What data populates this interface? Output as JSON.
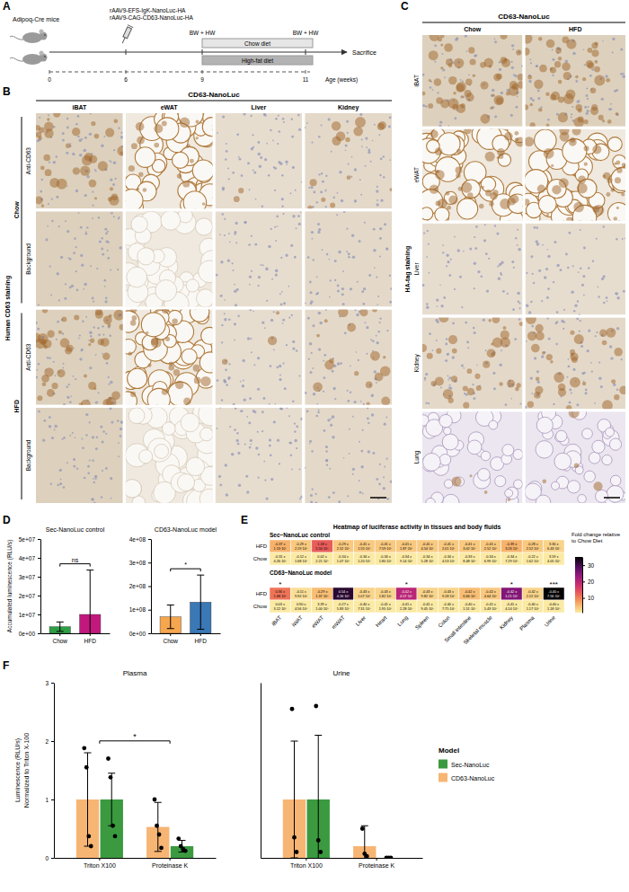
{
  "figure": {
    "panel_labels": [
      "A",
      "B",
      "C",
      "D",
      "E",
      "F"
    ],
    "schematic": {
      "mouse_label": "Adipoq-Cre mice",
      "vectors": [
        "rAAV9-EFS-IgK-NanoLuc-HA",
        "rAAV9-CAG-CD63-NanoLuc-HA"
      ],
      "measure_labels": [
        "BW + HW",
        "BW + HW"
      ],
      "diets": [
        "Chow diet",
        "High-fat diet"
      ],
      "end_label": "Sacrifice",
      "axis_label": "Age (weeks)",
      "ticks": [
        "0",
        "6",
        "9",
        "11"
      ]
    },
    "image_grid_B": {
      "title": "CD63-NanoLuc",
      "group_label": "Human CD63 staining",
      "columns": [
        "iBAT",
        "eWAT",
        "Liver",
        "Kidney"
      ],
      "row_groups": [
        {
          "name": "Chow",
          "rows": [
            "Anti-CD63",
            "Background"
          ]
        },
        {
          "name": "HFD",
          "rows": [
            "Anti-CD63",
            "Background"
          ]
        }
      ]
    },
    "image_grid_C": {
      "title": "CD63-NanoLuc",
      "group_label": "HA-tag staining",
      "columns": [
        "Chow",
        "HFD"
      ],
      "rows": [
        "iBAT",
        "eWAT",
        "Liver",
        "Kidney",
        "Lung"
      ]
    }
  },
  "chart_data": [
    {
      "type": "bar",
      "title": "Sec-NanoLuc control",
      "y_label": "Accumulated luminescence (RLU/s)",
      "categories": [
        "Chow",
        "HFD"
      ],
      "values": [
        3500000,
        10000000
      ],
      "errors": [
        2500000,
        23500000
      ],
      "colors": [
        "#2e9e46",
        "#c2187e"
      ],
      "ylim": [
        0,
        50000000
      ],
      "yticks": [
        {
          "value": 0,
          "label": "0e+00"
        },
        {
          "value": 10000000,
          "label": "1e+07"
        },
        {
          "value": 20000000,
          "label": "2e+07"
        },
        {
          "value": 30000000,
          "label": "3e+07"
        },
        {
          "value": 40000000,
          "label": "4e+07"
        },
        {
          "value": 50000000,
          "label": "5e+07"
        }
      ],
      "annotations": [
        "ns"
      ],
      "grid": false
    },
    {
      "type": "bar",
      "title": "CD63-NanoLuc model",
      "categories": [
        "Chow",
        "HFD"
      ],
      "values": [
        70000000,
        132000000
      ],
      "errors": [
        50000000,
        115000000
      ],
      "colors": [
        "#f5a64e",
        "#3a78b6"
      ],
      "ylim": [
        0,
        400000000
      ],
      "yticks": [
        {
          "value": 0,
          "label": "0e+00"
        },
        {
          "value": 100000000,
          "label": "1e+08"
        },
        {
          "value": 200000000,
          "label": "2e+08"
        },
        {
          "value": 300000000,
          "label": "3e+08"
        },
        {
          "value": 400000000,
          "label": "4e+08"
        }
      ],
      "annotations": [
        "*"
      ],
      "grid": false
    },
    {
      "type": "heatmap",
      "title": "Heatmap of luciferase activity in tissues and body fluids",
      "categories": [
        "iBAT",
        "iWAT",
        "eWAT",
        "mWAT",
        "Liver",
        "Heart",
        "Lung",
        "Spleen",
        "Colon",
        "Small intestine",
        "Skeletal muscle",
        "Kidney",
        "Plasma",
        "Urine"
      ],
      "groups": [
        {
          "name": "Sec−NanoLuc control",
          "rows": [
            "HFD",
            "Chow"
          ],
          "cells": [
            [
              6,
              4,
              13,
              4,
              4,
              4,
              4,
              4,
              4,
              4,
              4,
              6,
              4,
              3
            ],
            [
              1,
              1,
              1,
              1,
              1,
              1,
              1,
              1,
              1,
              1,
              1,
              1,
              1,
              1
            ]
          ],
          "cell_labels": [
            [
              "-0.37 ±\n1.13·10⁵",
              "-0.29 ±\n2.19·10⁵",
              "1.18 ±\n5.50·10⁵",
              "-0.29 ±\n2.52·10⁵",
              "-0.41 ±\n1.55·10⁵",
              "-0.41 ±\n7.59·10⁵",
              "-0.41 ±\n1.87·10⁵",
              "-0.41 ±\n4.54·10⁵",
              "-0.41 ±\n2.01·10⁵",
              "-0.41 ±\n3.02·10⁵",
              "-0.41 ±\n2.52·10⁵",
              "-0.39 ±\n3.26·10⁵",
              "-0.28 ±\n2.52·10⁵",
              "3.30 ±\n6.43·10⁵"
            ],
            [
              "-0.31 ±\n4.26·10⁵",
              "-0.12 ±\n1.68·10⁵",
              "0.02 ±\n2.21·10⁵",
              "-0.34 ±\n1.07·10⁵",
              "-0.34 ±\n1.20·10⁵",
              "-0.34 ±\n1.80·10⁵",
              "-0.34 ±\n9.14·10⁵",
              "-0.34 ±\n5.28·10⁵",
              "-0.34 ±\n4.53·10⁵",
              "-0.33 ±\n8.48·10⁵",
              "-0.34 ±\n6.99·10⁵",
              "-0.34 ±\n7.29·10⁵",
              "-0.22 ±\n1.62·10⁵",
              "3.59 ±\n4.05·10⁵"
            ]
          ]
        },
        {
          "name": "CD63−NanoLuc model",
          "rows": [
            "HFD",
            "Chow"
          ],
          "cells": [
            [
              11,
              2,
              5,
              32,
              3,
              3,
              20,
              3,
              3,
              5,
              4,
              25,
              3,
              35
            ],
            [
              1,
              1,
              1,
              1,
              1,
              1,
              1,
              1,
              1,
              1,
              1,
              1,
              1,
              1
            ]
          ],
          "cell_labels": [
            [
              "0.36 ±\n1.68·10⁵",
              "-0.11 ±\n9.92·10⁵",
              "-0.29 ±\n1.37·10⁵",
              "0.54 ±\n4.16·10⁵",
              "-0.43 ±\n1.07·10⁵",
              "-0.43 ±\n1.82·10⁵",
              "-0.42 ±\n4.57·10⁵",
              "-0.43 ±\n9.82·10⁵",
              "-0.43 ±\n9.18·10⁵",
              "-0.42 ±\n6.66·10⁵",
              "-0.42 ±\n4.64·10⁵",
              "-0.42 ±\n1.21·10⁵",
              "-0.42 ±\n2.12·10⁵",
              "-0.40 ±\n7.56·10⁵"
            ],
            [
              "0.03 ±\n3.12·10⁵",
              "0.90 ±\n4.56·10⁵",
              "3.39 ±\n1.00·10⁵",
              "-0.27 ±\n5.83·10⁵",
              "-0.40 ±\n7.31·10⁵",
              "-0.41 ±\n1.95·10⁵",
              "-0.41 ±\n2.28·10⁵",
              "-0.41 ±\n9.45·10⁵",
              "-0.40 ±\n7.75·10⁵",
              "-0.40 ±\n1.51·10⁵",
              "-0.41 ±\n5.43·10⁵",
              "-0.41 ±\n4.14·10⁵",
              "-0.40 ±\n1.17·10⁵",
              "-0.40 ±\n1.18·10⁵"
            ]
          ],
          "significance": [
            "*",
            null,
            null,
            null,
            null,
            null,
            "*",
            null,
            null,
            null,
            null,
            "*",
            null,
            "***"
          ]
        }
      ],
      "colorbar": {
        "title": "Fold change relative to Chow Diet",
        "range": [
          1,
          35
        ],
        "ticks": [
          10,
          20,
          30
        ]
      }
    },
    {
      "type": "bar",
      "title": "Plasma",
      "y_label": [
        "Luminescence (RLU/s)",
        "Normalized to Triton X-100"
      ],
      "categories": [
        "Triton X100",
        "Proteinase K"
      ],
      "series": [
        {
          "color": "#f7b574",
          "values": [
            1.0,
            0.53
          ],
          "errors": [
            0.8,
            0.42
          ],
          "points": [
            [
              1.88,
              1.55,
              0.37,
              0.2
            ],
            [
              1.0,
              0.55,
              0.4,
              0.17
            ]
          ]
        },
        {
          "color": "#3b9a3f",
          "values": [
            1.0,
            0.2
          ],
          "errors": [
            0.45,
            0.1
          ],
          "points": [
            [
              1.7,
              1.38,
              0.55,
              0.37
            ],
            [
              0.33,
              0.2,
              0.15,
              0.12
            ]
          ]
        }
      ],
      "ylim": [
        0,
        3
      ],
      "yticks": [
        0,
        1,
        2,
        3
      ],
      "annotations": [
        "*"
      ],
      "grid": false
    },
    {
      "type": "bar",
      "title": "Urine",
      "categories": [
        "Triton X100",
        "Proteinase K"
      ],
      "series": [
        {
          "name": "CD63-NanoLuc",
          "color": "#f7b574",
          "values": [
            1.0,
            0.2
          ],
          "errors": [
            1.0,
            0.35
          ],
          "points": [
            [
              2.55,
              0.35,
              0.1
            ],
            [
              0.5,
              0.07,
              0.03
            ]
          ]
        },
        {
          "name": "Sec-NanoLuc",
          "color": "#3b9a3f",
          "values": [
            1.0,
            0.0
          ],
          "errors": [
            1.1,
            0.0
          ],
          "points": [
            [
              2.6,
              0.3,
              0.1
            ],
            [
              0.0,
              0.0,
              0.0
            ]
          ]
        }
      ],
      "ylim": [
        0,
        3
      ],
      "tick_labels": "x",
      "legend": "right",
      "legend_title": "Model",
      "grid": false
    }
  ]
}
